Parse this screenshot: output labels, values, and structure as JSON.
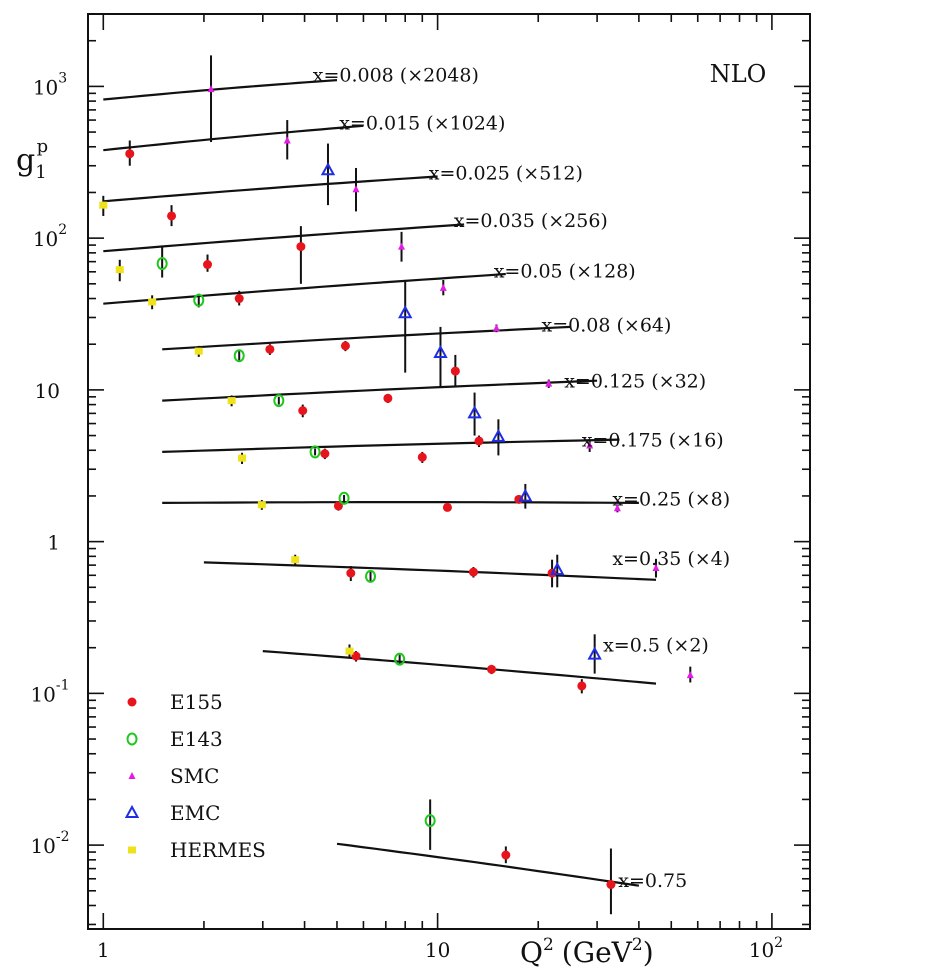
{
  "chart_data": {
    "type": "scatter",
    "title": "NLO",
    "xlabel": "Q",
    "xlabel_sup": "2",
    "xlabel_units": "(GeV",
    "xlabel_units_sup": "2",
    "xlabel_units_close": ")",
    "ylabel": "g",
    "ylabel_sub": "1",
    "ylabel_sup": "p",
    "xscale": "log",
    "yscale": "log",
    "xlim": [
      0.9,
      130
    ],
    "ylim": [
      0.0028,
      3000
    ],
    "x_ticks": [
      {
        "value": 1,
        "base": "1",
        "exp": ""
      },
      {
        "value": 10,
        "base": "10",
        "exp": ""
      },
      {
        "value": 100,
        "base": "10",
        "exp": "2"
      }
    ],
    "y_ticks": [
      {
        "value": 0.01,
        "base": "10",
        "exp": "-2"
      },
      {
        "value": 0.1,
        "base": "10",
        "exp": "-1"
      },
      {
        "value": 1,
        "base": "1",
        "exp": ""
      },
      {
        "value": 10,
        "base": "10",
        "exp": ""
      },
      {
        "value": 100,
        "base": "10",
        "exp": "2"
      },
      {
        "value": 1000,
        "base": "10",
        "exp": "3"
      }
    ],
    "legend_position": "bottom-left",
    "legend": [
      {
        "name": "E155",
        "marker": "filled-circle",
        "color": "#e8141c"
      },
      {
        "name": "E143",
        "marker": "open-circle",
        "color": "#1ec81e"
      },
      {
        "name": "SMC",
        "marker": "filled-triangle",
        "color": "#e619e6"
      },
      {
        "name": "EMC",
        "marker": "open-triangle",
        "color": "#1f2ee6"
      },
      {
        "name": "HERMES",
        "marker": "filled-square",
        "color": "#f0e21a"
      }
    ],
    "bins": [
      {
        "label": "x=0.008 (×2048)",
        "x_label_at": 7.5,
        "y_label_at": 1200,
        "curve": [
          [
            1,
            820
          ],
          [
            5,
            1100
          ]
        ]
      },
      {
        "label": "x=0.015 (×1024)",
        "x_label_at": 9.0,
        "y_label_at": 580,
        "curve": [
          [
            1,
            380
          ],
          [
            6,
            550
          ]
        ]
      },
      {
        "label": "x=0.025 (×512)",
        "x_label_at": 16.0,
        "y_label_at": 270,
        "curve": [
          [
            1,
            175
          ],
          [
            10,
            255
          ]
        ]
      },
      {
        "label": "x=0.035 (×256)",
        "x_label_at": 19.0,
        "y_label_at": 132,
        "curve": [
          [
            1,
            82
          ],
          [
            12,
            123
          ]
        ]
      },
      {
        "label": "x=0.05 (×128)",
        "x_label_at": 24.0,
        "y_label_at": 61,
        "curve": [
          [
            1,
            37
          ],
          [
            16,
            58
          ]
        ]
      },
      {
        "label": "x=0.08 (×64)",
        "x_label_at": 32.0,
        "y_label_at": 27,
        "curve": [
          [
            1.5,
            18.5
          ],
          [
            25,
            26
          ]
        ]
      },
      {
        "label": "x=0.125 (×32)",
        "x_label_at": 39.0,
        "y_label_at": 11.5,
        "curve": [
          [
            1.5,
            8.5
          ],
          [
            30,
            11.5
          ]
        ]
      },
      {
        "label": "x=0.175 (×16)",
        "x_label_at": 44.0,
        "y_label_at": 4.7,
        "curve": [
          [
            1.5,
            3.9
          ],
          [
            35,
            4.7
          ]
        ]
      },
      {
        "label": "x=0.25 (×8)",
        "x_label_at": 50.0,
        "y_label_at": 1.92,
        "curve": [
          [
            1.5,
            1.8
          ],
          [
            40,
            1.8
          ]
        ]
      },
      {
        "label": "x=0.35 (×4)",
        "x_label_at": 50.0,
        "y_label_at": 0.78,
        "curve": [
          [
            2,
            0.73
          ],
          [
            45,
            0.56
          ]
        ]
      },
      {
        "label": "x=0.5 (×2)",
        "x_label_at": 45.0,
        "y_label_at": 0.21,
        "curve": [
          [
            3,
            0.19
          ],
          [
            45,
            0.116
          ]
        ]
      },
      {
        "label": "x=0.75",
        "x_label_at": 44.0,
        "y_label_at": 0.0059,
        "curve": [
          [
            5,
            0.0102
          ],
          [
            40,
            0.0054
          ]
        ]
      }
    ],
    "series": [
      {
        "name": "E155",
        "points": [
          [
            1.2,
            360,
            300,
            440
          ],
          [
            1.6,
            140,
            120,
            165
          ],
          [
            2.05,
            67,
            60,
            78
          ],
          [
            2.55,
            40,
            36,
            45
          ],
          [
            3.15,
            18.5,
            17,
            20
          ],
          [
            3.9,
            88,
            50,
            120
          ],
          [
            3.95,
            7.3,
            6.6,
            8.0
          ],
          [
            4.6,
            3.8,
            3.5,
            4.1
          ],
          [
            5.05,
            1.72,
            1.6,
            1.85
          ],
          [
            5.3,
            19.5,
            18,
            21
          ],
          [
            5.5,
            0.62,
            0.55,
            0.69
          ],
          [
            5.7,
            0.176,
            0.162,
            0.19
          ],
          [
            7.1,
            8.8,
            8.2,
            9.4
          ],
          [
            9.0,
            3.6,
            3.3,
            3.9
          ],
          [
            10.7,
            1.68,
            1.58,
            1.78
          ],
          [
            11.3,
            13.3,
            10.5,
            17
          ],
          [
            12.8,
            0.63,
            0.58,
            0.68
          ],
          [
            13.3,
            4.6,
            4.2,
            5.0
          ],
          [
            14.5,
            0.144,
            0.134,
            0.154
          ],
          [
            16.0,
            0.0086,
            0.0076,
            0.0098
          ],
          [
            17.5,
            1.9,
            1.78,
            2.02
          ],
          [
            22.0,
            0.62,
            0.5,
            0.76
          ],
          [
            27.0,
            0.112,
            0.1,
            0.124
          ],
          [
            33.0,
            0.0055,
            0.0035,
            0.0095
          ]
        ]
      },
      {
        "name": "E143",
        "points": [
          [
            1.5,
            68,
            55,
            88
          ],
          [
            1.93,
            39,
            35,
            43
          ],
          [
            2.55,
            16.8,
            15.5,
            18
          ],
          [
            3.35,
            8.5,
            8.0,
            9.0
          ],
          [
            4.3,
            3.9,
            3.7,
            4.1
          ],
          [
            5.25,
            1.93,
            1.83,
            2.03
          ],
          [
            6.3,
            0.59,
            0.54,
            0.64
          ],
          [
            7.7,
            0.168,
            0.155,
            0.18
          ],
          [
            9.5,
            0.0145,
            0.0093,
            0.02
          ]
        ]
      },
      {
        "name": "SMC",
        "points": [
          [
            2.1,
            960,
            430,
            1600
          ],
          [
            3.55,
            440,
            330,
            600
          ],
          [
            5.7,
            210,
            150,
            290
          ],
          [
            7.8,
            88,
            70,
            110
          ],
          [
            10.4,
            47,
            42,
            53
          ],
          [
            15.0,
            25.5,
            24,
            27
          ],
          [
            21.5,
            11,
            10.3,
            11.7
          ],
          [
            28.5,
            4.3,
            3.9,
            4.7
          ],
          [
            34.5,
            1.66,
            1.56,
            1.76
          ],
          [
            45.0,
            0.67,
            0.58,
            0.77
          ],
          [
            57.0,
            0.132,
            0.118,
            0.15
          ]
        ]
      },
      {
        "name": "EMC",
        "points": [
          [
            4.7,
            280,
            165,
            420
          ],
          [
            8.0,
            32,
            13,
            52
          ],
          [
            10.2,
            17.5,
            10.5,
            26
          ],
          [
            12.9,
            7.0,
            5.0,
            9.6
          ],
          [
            15.2,
            4.9,
            3.7,
            6.4
          ],
          [
            18.3,
            1.98,
            1.65,
            2.4
          ],
          [
            22.8,
            0.65,
            0.5,
            0.82
          ],
          [
            29.5,
            0.18,
            0.135,
            0.245
          ]
        ]
      },
      {
        "name": "HERMES",
        "points": [
          [
            1.0,
            165,
            140,
            190
          ],
          [
            1.12,
            62,
            52,
            72
          ],
          [
            1.4,
            38,
            34,
            42
          ],
          [
            1.93,
            18,
            16.5,
            19.5
          ],
          [
            2.42,
            8.5,
            7.8,
            9.2
          ],
          [
            2.6,
            3.55,
            3.25,
            3.85
          ],
          [
            2.98,
            1.75,
            1.62,
            1.88
          ],
          [
            3.75,
            0.76,
            0.7,
            0.82
          ],
          [
            5.45,
            0.19,
            0.17,
            0.21
          ]
        ]
      }
    ]
  }
}
